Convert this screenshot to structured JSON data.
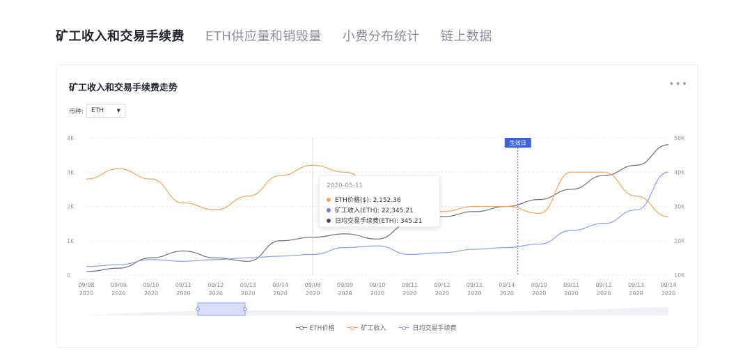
{
  "tabs": [
    {
      "label": "矿工收入和交易手续费",
      "active": true
    },
    {
      "label": "ETH供应量和销毁量",
      "active": false
    },
    {
      "label": "小费分布统计",
      "active": false
    },
    {
      "label": "链上数据",
      "active": false
    }
  ],
  "card": {
    "title": "矿工收入和交易手续费走势",
    "more_icon": "more-dots-icon",
    "coin_label": "币种:",
    "coin_value": "ETH"
  },
  "tooltip": {
    "date": "2020-05-11",
    "rows": [
      {
        "text": "ETH价格($): 2,152.36",
        "color": "#f0a45d"
      },
      {
        "text": "矿工收入(ETH): 22,345.21",
        "color": "#6b7fd7"
      },
      {
        "text": "日均交易手续费(ETH): 345.21",
        "color": "#4a4f5c"
      }
    ]
  },
  "colors": {
    "price": "#6e7079",
    "income": "#f0a45d",
    "fee": "#8c9ee6",
    "marker": "#3d63d8"
  },
  "chart_data": {
    "type": "line",
    "title": "",
    "x": [
      "09/08\n2020",
      "09/09\n2020",
      "09/10\n2020",
      "09/11\n2020",
      "09/12\n2020",
      "09/13\n2020",
      "09/14\n2020",
      "09/08\n2020",
      "09/09\n2020",
      "09/10\n2020",
      "09/11\n2020",
      "09/12\n2020",
      "09/13\n2020",
      "09/14\n2020",
      "09/10\n2020",
      "09/11\n2020",
      "09/12\n2020",
      "09/13\n2020",
      "09/14\n2020"
    ],
    "y_left": {
      "ticks": [
        "0",
        "1K",
        "2K",
        "3K",
        "4K"
      ],
      "range": [
        0,
        4000
      ]
    },
    "y_right": {
      "ticks": [
        "10K",
        "20K",
        "30K",
        "40K",
        "50K"
      ],
      "range": [
        10000,
        50000
      ]
    },
    "grid": true,
    "marker_label": "生效日",
    "series": [
      {
        "name": "ETH价格",
        "axis": "left",
        "values": [
          100,
          200,
          500,
          700,
          500,
          400,
          1000,
          1100,
          1200,
          1050,
          1500,
          1700,
          1850,
          2000,
          2200,
          2500,
          2900,
          3200,
          3800
        ]
      },
      {
        "name": "矿工收入",
        "axis": "right",
        "values": [
          38000,
          41000,
          38000,
          31000,
          29000,
          33000,
          39000,
          42000,
          40000,
          35000,
          30000,
          28500,
          30000,
          30000,
          28000,
          40000,
          40000,
          33000,
          27000
        ]
      },
      {
        "name": "日均交易手续费",
        "axis": "left",
        "values": [
          250,
          300,
          450,
          400,
          450,
          500,
          550,
          600,
          800,
          850,
          600,
          650,
          750,
          800,
          900,
          1300,
          1500,
          1900,
          3000
        ]
      }
    ],
    "legend": {
      "position": "bottom-center"
    }
  },
  "legend_items": [
    "ETH价格",
    "矿工收入",
    "日均交易手续费"
  ]
}
